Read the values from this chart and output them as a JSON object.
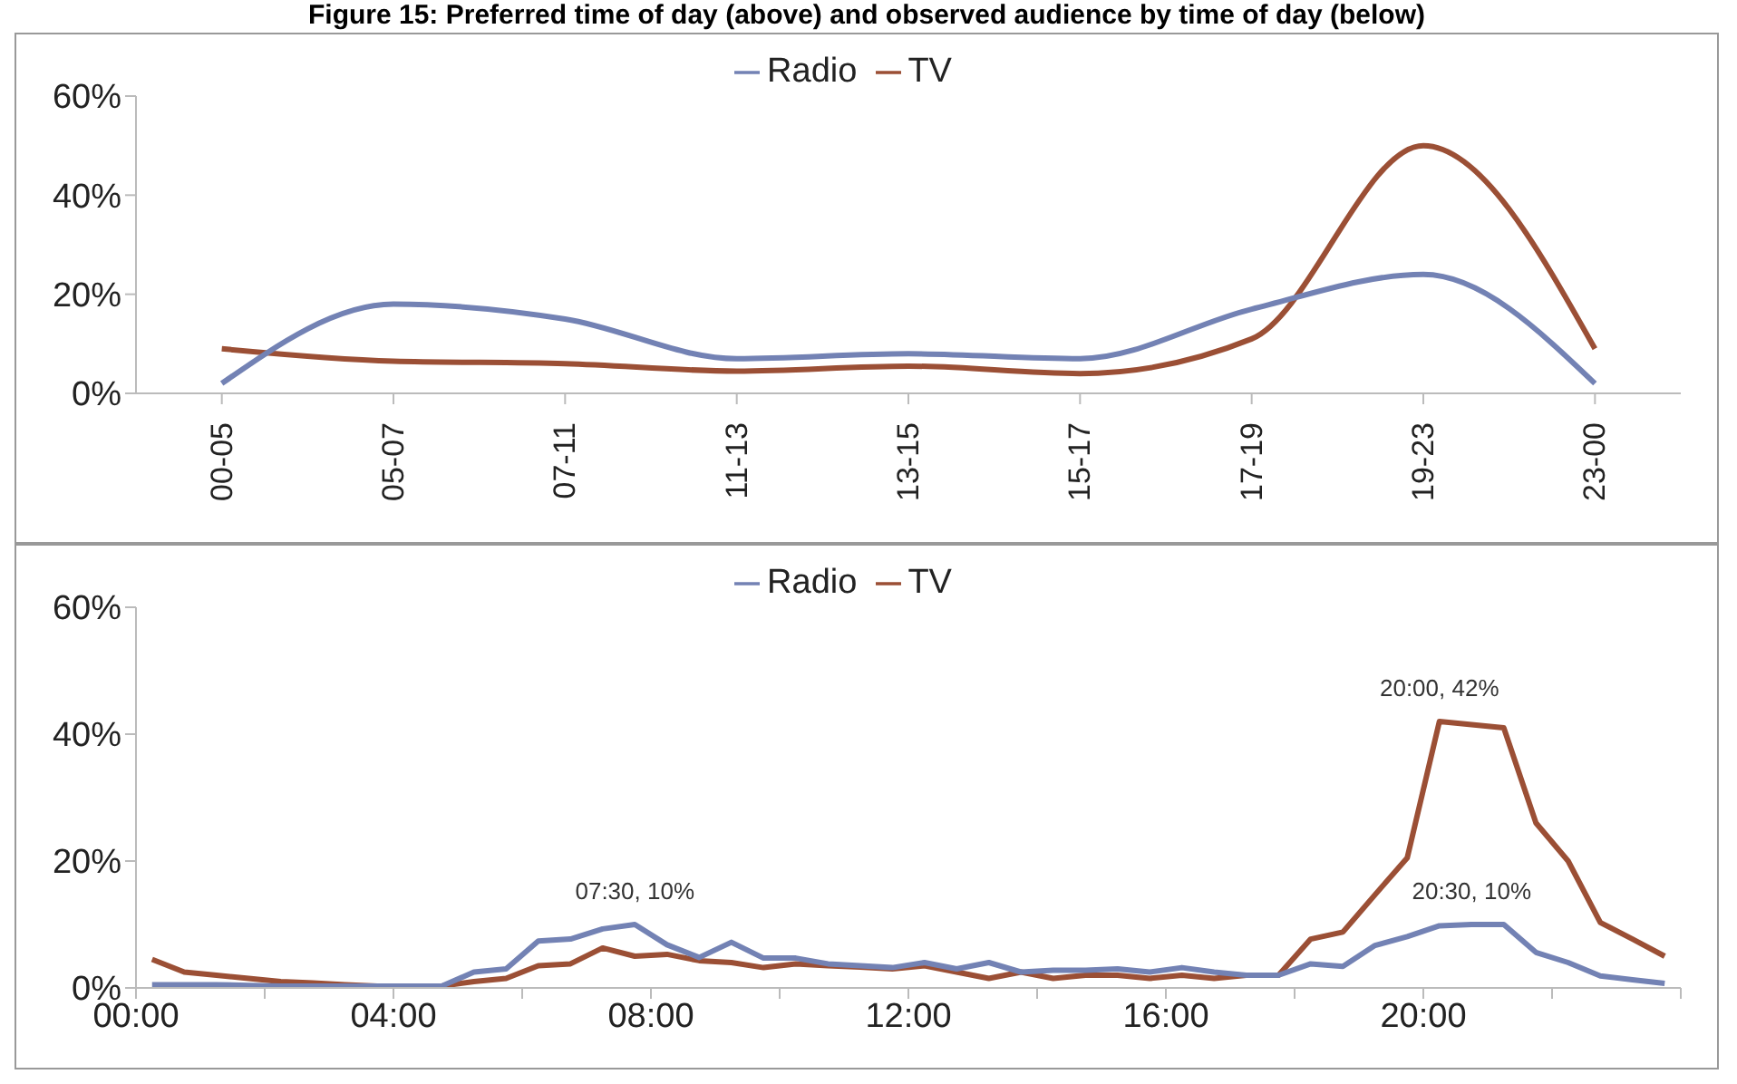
{
  "chart_data": [
    {
      "type": "line",
      "title": "Figure 15: Preferred time of day (above) and observed audience by time of day (below)",
      "categories": [
        "00-05",
        "05-07",
        "07-11",
        "11-13",
        "13-15",
        "15-17",
        "17-19",
        "19-23",
        "23-00"
      ],
      "series": [
        {
          "name": "TV",
          "color": "#9b4f35",
          "values": [
            9,
            6.5,
            6,
            4.5,
            5.5,
            4,
            11,
            50,
            9
          ]
        },
        {
          "name": "Radio",
          "color": "#7382b4",
          "values": [
            2,
            18,
            15,
            7,
            8,
            7,
            17,
            24,
            2
          ]
        }
      ],
      "ylim": [
        0,
        60
      ],
      "yticks": [
        {
          "value": 0,
          "label": "0%"
        },
        {
          "value": 20,
          "label": "20%"
        },
        {
          "value": 40,
          "label": "40%"
        },
        {
          "value": 60,
          "label": "60%"
        }
      ],
      "grid": false,
      "legend": "top",
      "marker": "none",
      "line_style": "solid"
    },
    {
      "type": "line",
      "x": [
        0.25,
        0.75,
        1.25,
        1.75,
        2.25,
        2.75,
        3.25,
        3.75,
        4.25,
        4.75,
        5.25,
        5.75,
        6.25,
        6.75,
        7.25,
        7.75,
        8.25,
        8.75,
        9.25,
        9.75,
        10.25,
        10.75,
        11.25,
        11.75,
        12.25,
        12.75,
        13.25,
        13.75,
        14.25,
        14.75,
        15.25,
        15.75,
        16.25,
        16.75,
        17.25,
        17.75,
        18.25,
        18.75,
        19.25,
        19.75,
        20.25,
        20.75,
        21.25,
        21.75,
        22.25,
        22.75,
        23.25,
        23.75
      ],
      "series": [
        {
          "name": "TV",
          "color": "#9b4f35",
          "values": [
            4.5,
            2.5,
            2,
            1.5,
            1,
            0.8,
            0.5,
            0.3,
            0.3,
            0.3,
            1,
            1.5,
            3.5,
            3.8,
            6.3,
            5,
            5.3,
            4.3,
            4,
            3.2,
            3.8,
            3.5,
            3.3,
            3,
            3.5,
            2.5,
            1.5,
            2.5,
            1.5,
            2,
            2,
            1.5,
            2,
            1.5,
            2,
            2,
            7.7,
            8.8,
            14.7,
            20.5,
            42,
            41.5,
            41,
            26,
            20,
            10.3,
            7.7,
            5
          ]
        },
        {
          "name": "Radio",
          "color": "#7382b4",
          "values": [
            0.5,
            0.5,
            0.5,
            0.4,
            0.3,
            0.3,
            0.3,
            0.3,
            0.3,
            0.3,
            2.5,
            3,
            7.4,
            7.7,
            9.3,
            10,
            6.8,
            4.8,
            7.2,
            4.7,
            4.7,
            3.8,
            3.5,
            3.2,
            4,
            3,
            4,
            2.5,
            2.8,
            2.8,
            3,
            2.5,
            3.2,
            2.5,
            2,
            2,
            3.8,
            3.4,
            6.7,
            8.1,
            9.8,
            10,
            10,
            5.6,
            4,
            1.9,
            1.3,
            0.7
          ]
        }
      ],
      "xlim": [
        0,
        24
      ],
      "xticks": [
        {
          "value": 0,
          "label": "00:00"
        },
        {
          "value": 2,
          "label": null
        },
        {
          "value": 4,
          "label": "04:00"
        },
        {
          "value": 6,
          "label": null
        },
        {
          "value": 8,
          "label": "08:00"
        },
        {
          "value": 10,
          "label": null
        },
        {
          "value": 12,
          "label": "12:00"
        },
        {
          "value": 14,
          "label": null
        },
        {
          "value": 16,
          "label": "16:00"
        },
        {
          "value": 18,
          "label": null
        },
        {
          "value": 20,
          "label": "20:00"
        },
        {
          "value": 22,
          "label": null
        },
        {
          "value": 24,
          "label": null
        }
      ],
      "ylim": [
        0,
        60
      ],
      "yticks": [
        {
          "value": 0,
          "label": "0%"
        },
        {
          "value": 20,
          "label": "20%"
        },
        {
          "value": 40,
          "label": "40%"
        },
        {
          "value": 60,
          "label": "60%"
        }
      ],
      "annotations": [
        {
          "text": "07:30, 10%",
          "x": 7.75,
          "y": 10
        },
        {
          "text": "20:00, 42%",
          "x": 20.25,
          "y": 42
        },
        {
          "text": "20:30, 10%",
          "x": 20.75,
          "y": 10
        }
      ],
      "grid": false,
      "legend": "top",
      "marker": "none",
      "line_style": "solid"
    }
  ]
}
